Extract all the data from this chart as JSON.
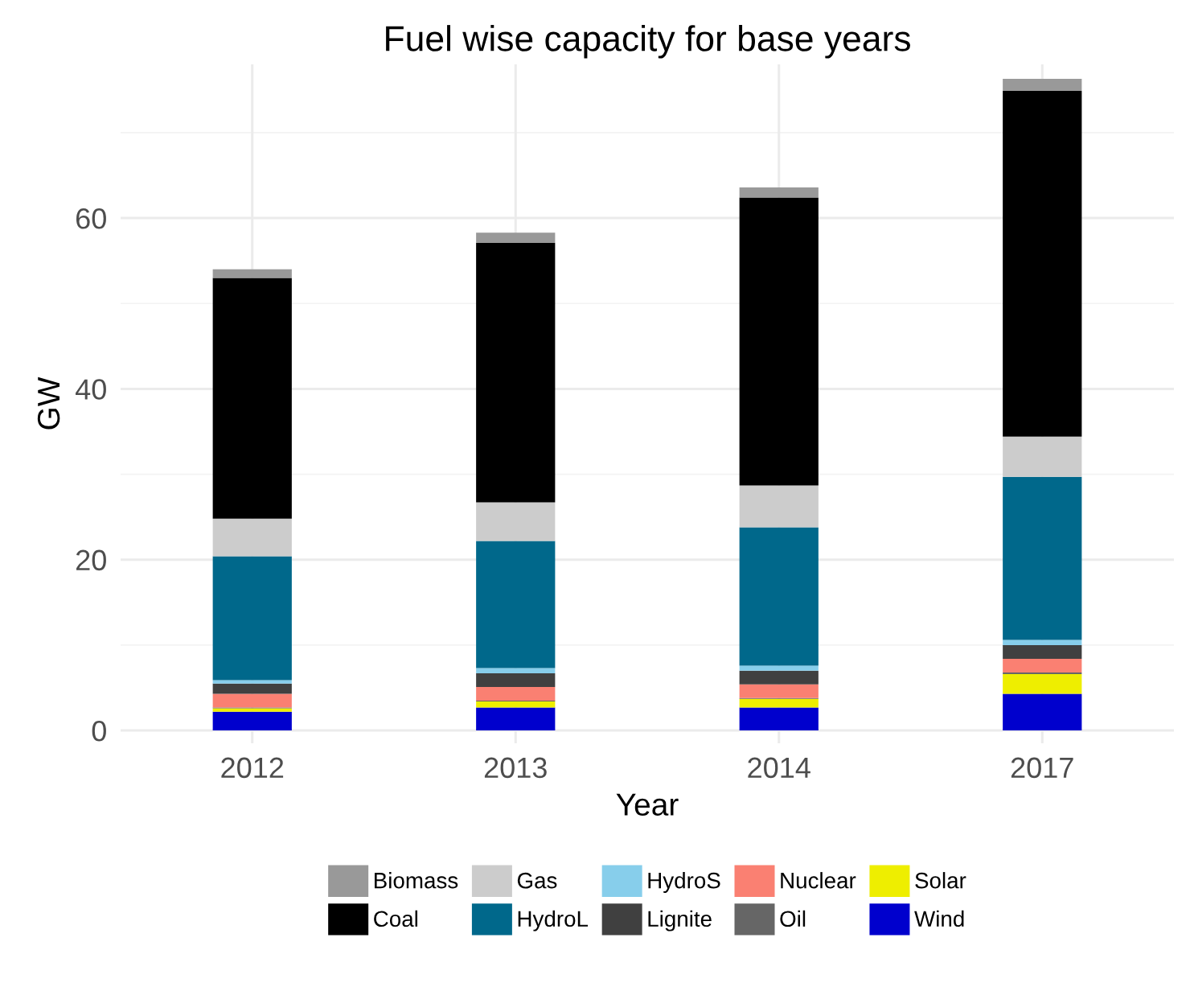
{
  "chart_data": {
    "type": "bar",
    "title": "Fuel wise capacity for base years",
    "xlabel": "Year",
    "ylabel": "GW",
    "categories": [
      "2012",
      "2013",
      "2014",
      "2017"
    ],
    "stacked": true,
    "ylim": [
      -1.5,
      78
    ],
    "yticks": [
      0,
      20,
      40,
      60
    ],
    "grid": true,
    "legend": "bottom",
    "series": [
      {
        "name": "Wind",
        "color": "#0000cd",
        "values": [
          2.2,
          2.7,
          2.7,
          4.3
        ]
      },
      {
        "name": "Solar",
        "color": "#eeee00",
        "values": [
          0.4,
          0.7,
          1.0,
          2.3
        ]
      },
      {
        "name": "Oil",
        "color": "#666666",
        "values": [
          0.1,
          0.1,
          0.1,
          0.2
        ]
      },
      {
        "name": "Nuclear",
        "color": "#fa8072",
        "values": [
          1.6,
          1.6,
          1.6,
          1.6
        ]
      },
      {
        "name": "Lignite",
        "color": "#404040",
        "values": [
          1.2,
          1.6,
          1.6,
          1.6
        ]
      },
      {
        "name": "HydroS",
        "color": "#87ceeb",
        "values": [
          0.4,
          0.6,
          0.6,
          0.6
        ]
      },
      {
        "name": "HydroL",
        "color": "#00688b",
        "values": [
          14.5,
          14.9,
          16.2,
          19.1
        ]
      },
      {
        "name": "Gas",
        "color": "#cccccc",
        "values": [
          4.4,
          4.5,
          4.9,
          4.7
        ]
      },
      {
        "name": "Coal",
        "color": "#000000",
        "values": [
          28.2,
          30.4,
          33.7,
          40.5
        ]
      },
      {
        "name": "Biomass",
        "color": "#999999",
        "values": [
          1.0,
          1.2,
          1.2,
          1.4
        ]
      }
    ]
  }
}
